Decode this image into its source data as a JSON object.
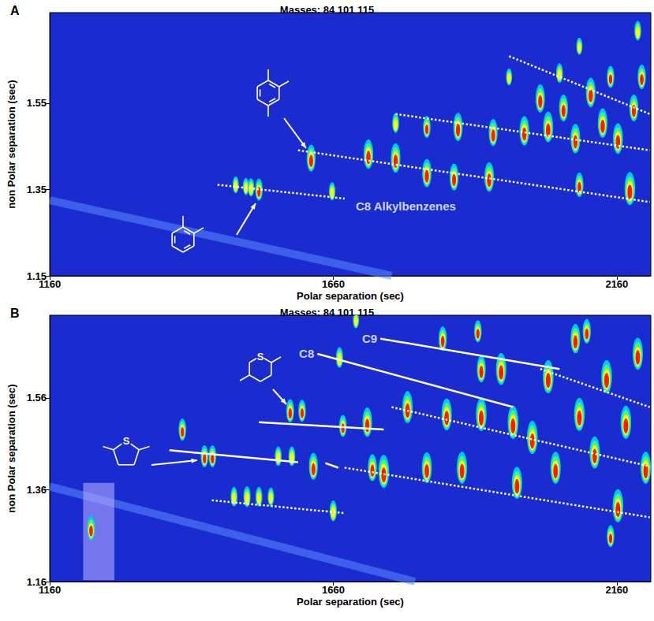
{
  "chart_data": [
    {
      "type": "heatmap",
      "panel": "A",
      "title": "Masses: 84 101 115",
      "xlabel": "Polar separation (sec)",
      "ylabel": "non Polar separation (sec)",
      "xlim": [
        1160,
        2220
      ],
      "xticks": [
        1160,
        1660,
        2160
      ],
      "ylim": [
        1.15,
        1.76
      ],
      "yticks": [
        1.15,
        1.35,
        1.55
      ],
      "zlim": [
        0,
        1
      ],
      "bleed": {
        "x": [
          1160,
          1763
        ],
        "y": [
          1.325,
          1.15
        ]
      },
      "peaks": {
        "x": [
          1488,
          1506,
          1515,
          1529,
          1658,
          1621,
          1722,
          1770,
          1770,
          1825,
          1825,
          1873,
          1880,
          1935,
          1942,
          1997,
          1970,
          2025,
          2039,
          2066,
          2087,
          2094,
          2114,
          2135,
          2162,
          2183,
          2190,
          2204,
          2149,
          2059,
          2094,
          2197
        ],
        "y": [
          1.361,
          1.357,
          1.355,
          1.35,
          1.346,
          1.423,
          1.432,
          1.423,
          1.504,
          1.388,
          1.495,
          1.379,
          1.495,
          1.379,
          1.482,
          1.486,
          1.611,
          1.561,
          1.495,
          1.539,
          1.468,
          1.361,
          1.575,
          1.504,
          1.468,
          1.352,
          1.539,
          1.611,
          1.611,
          1.62,
          1.682,
          1.718
        ],
        "intensity": [
          0.3,
          0.3,
          0.35,
          0.5,
          0.35,
          0.7,
          0.8,
          0.8,
          0.4,
          0.75,
          0.5,
          0.7,
          0.75,
          0.8,
          0.7,
          0.8,
          0.3,
          0.75,
          0.85,
          0.7,
          0.8,
          0.6,
          0.8,
          0.8,
          0.85,
          0.95,
          0.7,
          0.6,
          0.5,
          0.4,
          0.3,
          0.4
        ]
      },
      "lines": [
        {
          "x": [
            1456,
            1680
          ],
          "y": [
            1.361,
            1.329
          ],
          "line_style": "dotted"
        },
        {
          "x": [
            1598,
            2218
          ],
          "y": [
            1.441,
            1.321
          ],
          "line_style": "dotted"
        },
        {
          "x": [
            1770,
            2218
          ],
          "y": [
            1.525,
            1.441
          ],
          "line_style": "dotted"
        },
        {
          "x": [
            1970,
            2218
          ],
          "y": [
            1.659,
            1.525
          ],
          "line_style": "dotted"
        }
      ],
      "annotations": [
        {
          "text": "C8 Alkylbenzenes",
          "x": 1694,
          "y": 1.311
        }
      ]
    },
    {
      "type": "heatmap",
      "panel": "B",
      "title": "Masses: 84 101 115",
      "xlabel": "Polar separation (sec)",
      "ylabel": "non Polar separation (sec)",
      "xlim": [
        1160,
        2220
      ],
      "xticks": [
        1160,
        1660,
        2160
      ],
      "ylim": [
        1.16,
        1.74
      ],
      "yticks": [
        1.16,
        1.36,
        1.56
      ],
      "zlim": [
        0,
        1
      ],
      "heteroatom": "S",
      "bleed": {
        "x": [
          1160,
          1804
        ],
        "y": [
          1.367,
          1.16
        ]
      },
      "highlight": {
        "x": [
          1219,
          1274
        ],
        "y": [
          1.163,
          1.375
        ]
      },
      "peaks": {
        "x": [
          1233,
          1394,
          1485,
          1508,
          1529,
          1550,
          1433,
          1447,
          1563,
          1587,
          1625,
          1660,
          1671,
          1677,
          1584,
          1605,
          1720,
          1749,
          1729,
          1791,
          1825,
          1853,
          1860,
          1887,
          1921,
          1921,
          1956,
          1977,
          1984,
          2011,
          2039,
          2052,
          2087,
          2094,
          2121,
          2142,
          2162,
          2176,
          2197,
          2211,
          2149,
          2107,
          1915,
          1700
        ],
        "y": [
          1.276,
          1.491,
          1.345,
          1.345,
          1.345,
          1.345,
          1.433,
          1.433,
          1.433,
          1.433,
          1.411,
          1.314,
          1.648,
          1.499,
          1.532,
          1.532,
          1.507,
          1.4,
          1.408,
          1.54,
          1.408,
          1.689,
          1.524,
          1.408,
          1.524,
          1.623,
          1.623,
          1.507,
          1.375,
          1.474,
          1.606,
          1.408,
          1.689,
          1.524,
          1.441,
          1.606,
          1.325,
          1.507,
          1.656,
          1.408,
          1.259,
          1.705,
          1.705,
          1.73
        ],
        "intensity": [
          0.6,
          0.5,
          0.4,
          0.45,
          0.4,
          0.35,
          0.5,
          0.5,
          0.4,
          0.4,
          0.7,
          0.45,
          0.45,
          0.5,
          0.55,
          0.5,
          0.8,
          0.95,
          0.7,
          0.9,
          0.85,
          0.6,
          0.9,
          0.9,
          0.95,
          0.7,
          0.9,
          0.95,
          0.9,
          0.95,
          0.95,
          0.9,
          0.8,
          0.95,
          0.9,
          0.95,
          0.95,
          0.95,
          0.9,
          0.9,
          0.5,
          0.6,
          0.5,
          0.3
        ]
      },
      "lines": [
        {
          "x": [
            1446,
            1680
          ],
          "y": [
            1.337,
            1.309
          ],
          "line_style": "dotted"
        },
        {
          "x": [
            1680,
            2218
          ],
          "y": [
            1.408,
            1.3
          ],
          "line_style": "dotted"
        },
        {
          "x": [
            1763,
            2218
          ],
          "y": [
            1.54,
            1.411
          ],
          "line_style": "dotted"
        },
        {
          "x": [
            2025,
            2218
          ],
          "y": [
            1.623,
            1.54
          ],
          "line_style": "dotted"
        },
        {
          "x": [
            1371,
            1598
          ],
          "y": [
            1.446,
            1.42
          ],
          "line_style": "solid"
        },
        {
          "x": [
            1529,
            1749
          ],
          "y": [
            1.507,
            1.491
          ],
          "line_style": "solid"
        },
        {
          "x": [
            1632,
            1977
          ],
          "y": [
            1.656,
            1.54
          ],
          "line_style": "solid"
        },
        {
          "x": [
            1743,
            2059
          ],
          "y": [
            1.689,
            1.623
          ],
          "line_style": "solid"
        },
        {
          "x": [
            1646,
            1669
          ],
          "y": [
            1.418,
            1.408
          ],
          "line_style": "solid"
        }
      ],
      "annotations": [
        {
          "text": "C8",
          "x": 1632,
          "y": 1.656
        },
        {
          "text": "C9",
          "x": 1743,
          "y": 1.689
        }
      ]
    }
  ]
}
